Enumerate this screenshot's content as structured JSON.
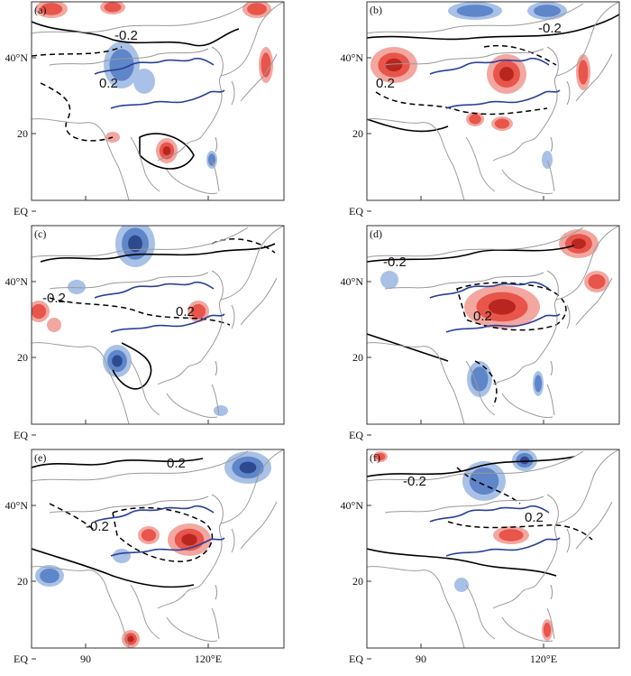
{
  "figure": {
    "panels": [
      {
        "label": "(a)",
        "pos_label": "0.2",
        "neg_label": "-0.2"
      },
      {
        "label": "(b)",
        "pos_label": "0.2",
        "neg_label": "-0.2"
      },
      {
        "label": "(c)",
        "pos_label": "0.2",
        "neg_label": "-0.2"
      },
      {
        "label": "(d)",
        "pos_label": "0.2",
        "neg_label": "-0.2"
      },
      {
        "label": "(e)",
        "pos_label": "0.2",
        "neg_label": "-0.2"
      },
      {
        "label": "(f)",
        "pos_label": "0.2",
        "neg_label": "-0.2"
      }
    ],
    "lat_labels": [
      "40°N",
      "20",
      "EQ"
    ],
    "lon_labels": [
      "90",
      "120°E"
    ]
  },
  "colors": {
    "red_light": "#f2a7a0",
    "red_mid": "#e8554b",
    "red_dark": "#b8261f",
    "blue_light": "#a9c1e6",
    "blue_mid": "#5f86c8",
    "blue_dark": "#2d4a8f",
    "coast": "#9a9a9a",
    "river": "#2a3f9a"
  }
}
